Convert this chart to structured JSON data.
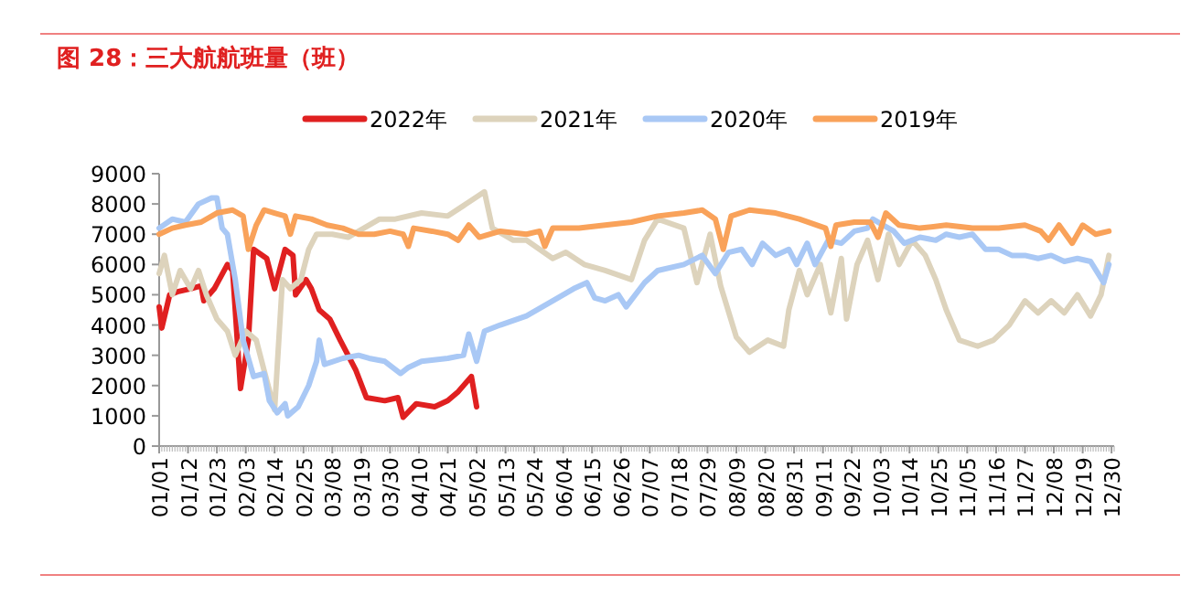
{
  "chart_data": {
    "type": "line",
    "title": "图 28：三大航航班量（班）",
    "legend": "top",
    "line_style": "solid",
    "marker": "none",
    "xlim": [
      "--01-01",
      "--12-31"
    ],
    "ylim": [
      0,
      9000
    ],
    "yticks": [
      0,
      1000,
      2000,
      3000,
      4000,
      5000,
      6000,
      7000,
      8000,
      9000
    ],
    "xticks": [
      {
        "value": "--01-01",
        "label": "01/01"
      },
      {
        "value": "--01-12",
        "label": "01/12"
      },
      {
        "value": "--01-23",
        "label": "01/23"
      },
      {
        "value": "--02-03",
        "label": "02/03"
      },
      {
        "value": "--02-14",
        "label": "02/14"
      },
      {
        "value": "--02-25",
        "label": "02/25"
      },
      {
        "value": "--03-08",
        "label": "03/08"
      },
      {
        "value": "--03-19",
        "label": "03/19"
      },
      {
        "value": "--03-30",
        "label": "03/30"
      },
      {
        "value": "--04-10",
        "label": "04/10"
      },
      {
        "value": "--04-21",
        "label": "04/21"
      },
      {
        "value": "--05-02",
        "label": "05/02"
      },
      {
        "value": "--05-13",
        "label": "05/13"
      },
      {
        "value": "--05-24",
        "label": "05/24"
      },
      {
        "value": "--06-04",
        "label": "06/04"
      },
      {
        "value": "--06-15",
        "label": "06/15"
      },
      {
        "value": "--06-26",
        "label": "06/26"
      },
      {
        "value": "--07-07",
        "label": "07/07"
      },
      {
        "value": "--07-18",
        "label": "07/18"
      },
      {
        "value": "--07-29",
        "label": "07/29"
      },
      {
        "value": "--08-09",
        "label": "08/09"
      },
      {
        "value": "--08-20",
        "label": "08/20"
      },
      {
        "value": "--08-31",
        "label": "08/31"
      },
      {
        "value": "--09-11",
        "label": "09/11"
      },
      {
        "value": "--09-22",
        "label": "09/22"
      },
      {
        "value": "--10-03",
        "label": "10/03"
      },
      {
        "value": "--10-14",
        "label": "10/14"
      },
      {
        "value": "--10-25",
        "label": "10/25"
      },
      {
        "value": "--11-05",
        "label": "11/05"
      },
      {
        "value": "--11-16",
        "label": "11/16"
      },
      {
        "value": "--11-27",
        "label": "11/27"
      },
      {
        "value": "--12-08",
        "label": "12/08"
      },
      {
        "value": "--12-19",
        "label": "12/19"
      },
      {
        "value": "--12-30",
        "label": "12/30"
      }
    ],
    "series": [
      {
        "name": "2022年",
        "color": "#e02020",
        "x": [
          "--01-01",
          "--01-02",
          "--01-05",
          "--01-08",
          "--01-13",
          "--01-17",
          "--01-18",
          "--01-22",
          "--01-27",
          "--01-29",
          "--02-01",
          "--02-04",
          "--02-06",
          "--02-11",
          "--02-14",
          "--02-18",
          "--02-21",
          "--02-22",
          "--02-26",
          "--02-28",
          "--03-03",
          "--03-07",
          "--03-11",
          "--03-17",
          "--03-21",
          "--03-28",
          "--04-02",
          "--04-04",
          "--04-09",
          "--04-16",
          "--04-21",
          "--04-25",
          "--04-30",
          "--05-02"
        ],
        "values": [
          4600,
          3900,
          5000,
          5100,
          5200,
          5300,
          4800,
          5200,
          6000,
          5800,
          1900,
          3500,
          6500,
          6200,
          5200,
          6500,
          6300,
          5000,
          5500,
          5200,
          4500,
          4200,
          3500,
          2500,
          1600,
          1500,
          1600,
          950,
          1400,
          1300,
          1500,
          1800,
          2300,
          1300
        ]
      },
      {
        "name": "2021年",
        "color": "#ddd3bc",
        "x": [
          "--01-01",
          "--01-03",
          "--01-06",
          "--01-09",
          "--01-13",
          "--01-16",
          "--01-19",
          "--01-23",
          "--01-27",
          "--01-30",
          "--02-03",
          "--02-07",
          "--02-10",
          "--02-14",
          "--02-17",
          "--02-20",
          "--02-24",
          "--02-27",
          "--03-02",
          "--03-08",
          "--03-14",
          "--03-20",
          "--03-26",
          "--04-01",
          "--04-11",
          "--04-21",
          "--04-28",
          "--05-05",
          "--05-08",
          "--05-16",
          "--05-21",
          "--05-31",
          "--06-05",
          "--06-12",
          "--06-20",
          "--06-30",
          "--07-05",
          "--07-10",
          "--07-20",
          "--07-25",
          "--07-30",
          "--08-03",
          "--08-09",
          "--08-14",
          "--08-21",
          "--08-27",
          "--08-29",
          "--09-02",
          "--09-05",
          "--09-10",
          "--09-14",
          "--09-18",
          "--09-20",
          "--09-24",
          "--09-28",
          "--10-02",
          "--10-06",
          "--10-10",
          "--10-15",
          "--10-20",
          "--10-24",
          "--10-28",
          "--11-02",
          "--11-09",
          "--11-15",
          "--11-21",
          "--11-27",
          "--12-02",
          "--12-07",
          "--12-12",
          "--12-17",
          "--12-22",
          "--12-26",
          "--12-29"
        ],
        "values": [
          5700,
          6300,
          5000,
          5800,
          5200,
          5800,
          5000,
          4200,
          3800,
          3000,
          3800,
          3500,
          2500,
          1200,
          5500,
          5200,
          5500,
          6500,
          7000,
          7000,
          6900,
          7200,
          7500,
          7500,
          7700,
          7600,
          8000,
          8400,
          7200,
          6800,
          6800,
          6200,
          6400,
          6000,
          5800,
          5500,
          6800,
          7500,
          7200,
          5400,
          7000,
          5300,
          3600,
          3100,
          3500,
          3300,
          4500,
          5800,
          5000,
          6000,
          4400,
          6200,
          4200,
          6000,
          6800,
          5500,
          7000,
          6000,
          6800,
          6300,
          5500,
          4500,
          3500,
          3300,
          3500,
          4000,
          4800,
          4400,
          4800,
          4400,
          5000,
          4300,
          5000,
          6300
        ]
      },
      {
        "name": "2020年",
        "color": "#a9c8f5",
        "x": [
          "--01-01",
          "--01-06",
          "--01-11",
          "--01-16",
          "--01-21",
          "--01-23",
          "--01-25",
          "--01-27",
          "--01-30",
          "--02-02",
          "--02-06",
          "--02-10",
          "--02-12",
          "--02-15",
          "--02-18",
          "--02-19",
          "--02-23",
          "--02-27",
          "--03-02",
          "--03-03",
          "--03-05",
          "--03-12",
          "--03-18",
          "--03-22",
          "--03-28",
          "--04-03",
          "--04-06",
          "--04-11",
          "--04-21",
          "--04-27",
          "--04-29",
          "--05-02",
          "--05-05",
          "--05-11",
          "--05-21",
          "--05-31",
          "--06-08",
          "--06-13",
          "--06-16",
          "--06-20",
          "--06-25",
          "--06-28",
          "--07-05",
          "--07-10",
          "--07-20",
          "--07-27",
          "--08-01",
          "--08-06",
          "--08-11",
          "--08-15",
          "--08-19",
          "--08-24",
          "--08-29",
          "--09-01",
          "--09-05",
          "--09-08",
          "--09-13",
          "--09-18",
          "--09-23",
          "--09-28",
          "--09-30",
          "--10-04",
          "--10-08",
          "--10-12",
          "--10-18",
          "--10-24",
          "--10-28",
          "--11-02",
          "--11-07",
          "--11-12",
          "--11-17",
          "--11-22",
          "--11-27",
          "--12-02",
          "--12-07",
          "--12-12",
          "--12-17",
          "--12-22",
          "--12-27",
          "--12-29"
        ],
        "values": [
          7200,
          7500,
          7400,
          8000,
          8200,
          8200,
          7200,
          7000,
          5500,
          3500,
          2300,
          2400,
          1500,
          1100,
          1400,
          1000,
          1300,
          2000,
          2800,
          3500,
          2700,
          2900,
          3000,
          2900,
          2800,
          2400,
          2600,
          2800,
          2900,
          3000,
          3700,
          2800,
          3800,
          4000,
          4300,
          4800,
          5200,
          5400,
          4900,
          4800,
          5000,
          4600,
          5400,
          5800,
          6000,
          6300,
          5700,
          6400,
          6500,
          6000,
          6700,
          6300,
          6500,
          6000,
          6700,
          6000,
          6800,
          6700,
          7100,
          7200,
          7500,
          7300,
          7100,
          6700,
          6900,
          6800,
          7000,
          6900,
          7000,
          6500,
          6500,
          6300,
          6300,
          6200,
          6300,
          6100,
          6200,
          6100,
          5400,
          6000
        ]
      },
      {
        "name": "2019年",
        "color": "#f9a25a",
        "x": [
          "--01-01",
          "--01-06",
          "--01-11",
          "--01-17",
          "--01-23",
          "--01-29",
          "--02-02",
          "--02-04",
          "--02-07",
          "--02-10",
          "--02-14",
          "--02-18",
          "--02-20",
          "--02-22",
          "--02-28",
          "--03-06",
          "--03-12",
          "--03-18",
          "--03-24",
          "--03-30",
          "--04-04",
          "--04-06",
          "--04-08",
          "--04-15",
          "--04-21",
          "--04-25",
          "--04-29",
          "--05-03",
          "--05-11",
          "--05-21",
          "--05-26",
          "--05-28",
          "--05-31",
          "--06-10",
          "--06-20",
          "--06-30",
          "--07-10",
          "--07-20",
          "--07-27",
          "--08-01",
          "--08-04",
          "--08-07",
          "--08-14",
          "--08-24",
          "--09-02",
          "--09-12",
          "--09-14",
          "--09-16",
          "--09-23",
          "--09-29",
          "--10-02",
          "--10-05",
          "--10-10",
          "--10-18",
          "--10-28",
          "--11-07",
          "--11-17",
          "--11-27",
          "--12-03",
          "--12-06",
          "--12-10",
          "--12-15",
          "--12-19",
          "--12-24",
          "--12-29"
        ],
        "values": [
          7000,
          7200,
          7300,
          7400,
          7700,
          7800,
          7600,
          6500,
          7300,
          7800,
          7700,
          7600,
          7000,
          7600,
          7500,
          7300,
          7200,
          7000,
          7000,
          7100,
          7000,
          6600,
          7200,
          7100,
          7000,
          6800,
          7300,
          6900,
          7100,
          7000,
          7100,
          6600,
          7200,
          7200,
          7300,
          7400,
          7600,
          7700,
          7800,
          7500,
          6500,
          7600,
          7800,
          7700,
          7500,
          7200,
          6600,
          7300,
          7400,
          7400,
          6900,
          7700,
          7300,
          7200,
          7300,
          7200,
          7200,
          7300,
          7100,
          6800,
          7300,
          6700,
          7300,
          7000,
          7100
        ]
      }
    ]
  }
}
